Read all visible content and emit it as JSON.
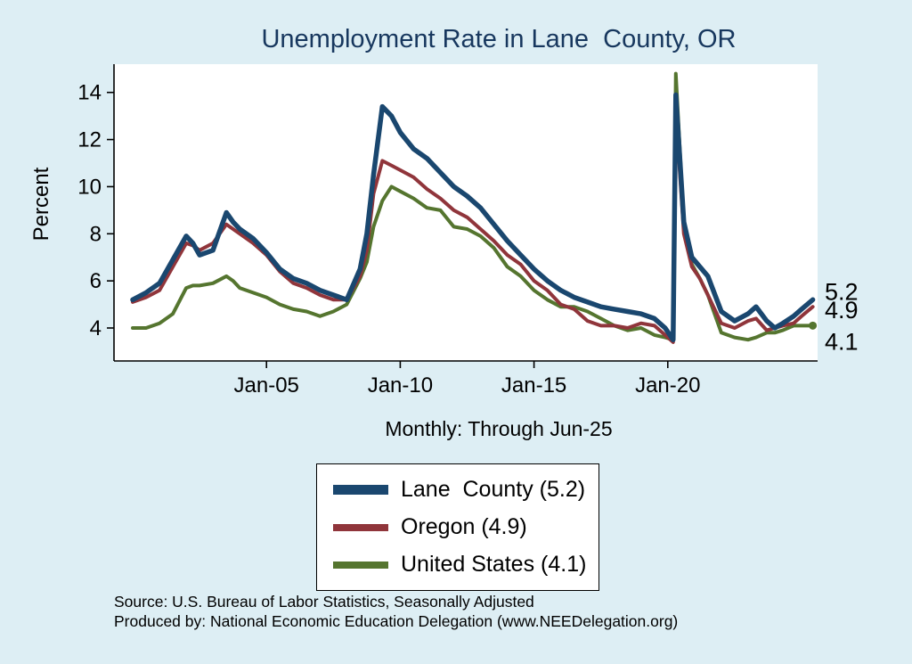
{
  "title": "Unemployment Rate in Lane  County, OR",
  "subtitle": "Monthly: Through Jun-25",
  "ylabel": "Percent",
  "source_line1": "Source: U.S. Bureau of Labor Statistics, Seasonally Adjusted",
  "source_line2": "Produced by: National Economic Education Delegation (www.NEEDelegation.org)",
  "colors": {
    "background": "#ddeef4",
    "title_text": "#17375e",
    "lane_county": "#1a476f",
    "oregon": "#90353b",
    "united_states": "#55752f"
  },
  "chart_data": {
    "type": "line",
    "title": "Unemployment Rate in Lane  County, OR",
    "subtitle": "Monthly: Through Jun-25",
    "xlabel": "",
    "ylabel": "Percent",
    "grid": false,
    "legend_position": "below",
    "x_unit": "decimal_year",
    "x_range": [
      1999.3,
      2025.6
    ],
    "y_range": [
      2.6,
      15.2
    ],
    "y_ticks": [
      4,
      6,
      8,
      10,
      12,
      14
    ],
    "x_ticks": [
      {
        "value": 2005,
        "label": "Jan-05"
      },
      {
        "value": 2010,
        "label": "Jan-10"
      },
      {
        "value": 2015,
        "label": "Jan-15"
      },
      {
        "value": 2020,
        "label": "Jan-20"
      }
    ],
    "x": [
      2000,
      2000.5,
      2001,
      2001.5,
      2002,
      2002.25,
      2002.5,
      2003,
      2003.5,
      2003.75,
      2004,
      2004.5,
      2005,
      2005.5,
      2006,
      2006.5,
      2007,
      2007.5,
      2008,
      2008.5,
      2008.75,
      2009,
      2009.33,
      2009.67,
      2010,
      2010.5,
      2011,
      2011.5,
      2012,
      2012.5,
      2013,
      2013.5,
      2014,
      2014.5,
      2015,
      2015.5,
      2016,
      2016.5,
      2017,
      2017.5,
      2018,
      2018.5,
      2019,
      2019.5,
      2019.9,
      2020.2,
      2020.3,
      2020.6,
      2020.9,
      2021.2,
      2021.5,
      2022,
      2022.5,
      2023,
      2023.3,
      2023.7,
      2024,
      2024.3,
      2024.7,
      2025,
      2025.42
    ],
    "series": [
      {
        "name": "Lane County",
        "legend_label": "Lane  County (5.2)",
        "end_label": "5.2",
        "latest_value": 5.2,
        "color": "#1a476f",
        "width": 5.5,
        "end_marker": false,
        "values": [
          5.2,
          5.5,
          5.9,
          6.9,
          7.9,
          7.6,
          7.1,
          7.3,
          8.9,
          8.5,
          8.2,
          7.8,
          7.2,
          6.5,
          6.1,
          5.9,
          5.6,
          5.4,
          5.2,
          6.5,
          8.0,
          10.5,
          13.4,
          13.0,
          12.3,
          11.6,
          11.2,
          10.6,
          10.0,
          9.6,
          9.1,
          8.4,
          7.7,
          7.1,
          6.5,
          6.0,
          5.6,
          5.3,
          5.1,
          4.9,
          4.8,
          4.7,
          4.6,
          4.4,
          4.0,
          3.5,
          13.9,
          8.5,
          7.0,
          6.6,
          6.2,
          4.7,
          4.3,
          4.6,
          4.9,
          4.3,
          4.0,
          4.2,
          4.5,
          4.8,
          5.2
        ]
      },
      {
        "name": "Oregon",
        "legend_label": "Oregon (4.9)",
        "end_label": "4.9",
        "latest_value": 4.9,
        "color": "#90353b",
        "width": 4,
        "end_marker": false,
        "values": [
          5.1,
          5.3,
          5.6,
          6.6,
          7.6,
          7.5,
          7.3,
          7.6,
          8.4,
          8.2,
          8.0,
          7.6,
          7.1,
          6.4,
          5.9,
          5.7,
          5.4,
          5.2,
          5.2,
          6.2,
          7.3,
          9.7,
          11.1,
          10.9,
          10.7,
          10.4,
          9.9,
          9.5,
          9.0,
          8.7,
          8.2,
          7.7,
          7.1,
          6.7,
          6.0,
          5.6,
          5.0,
          4.8,
          4.3,
          4.1,
          4.1,
          4.0,
          4.2,
          4.1,
          3.7,
          3.4,
          13.2,
          8.0,
          6.6,
          6.1,
          5.4,
          4.2,
          4.0,
          4.3,
          4.4,
          3.9,
          4.0,
          4.1,
          4.2,
          4.5,
          4.9
        ]
      },
      {
        "name": "United States",
        "legend_label": "United States (4.1)",
        "end_label": "4.1",
        "latest_value": 4.1,
        "color": "#55752f",
        "width": 4,
        "end_marker": true,
        "values": [
          4.0,
          4.0,
          4.2,
          4.6,
          5.7,
          5.8,
          5.8,
          5.9,
          6.2,
          6.0,
          5.7,
          5.5,
          5.3,
          5.0,
          4.8,
          4.7,
          4.5,
          4.7,
          5.0,
          6.1,
          6.8,
          8.3,
          9.4,
          10.0,
          9.8,
          9.5,
          9.1,
          9.0,
          8.3,
          8.2,
          7.9,
          7.4,
          6.6,
          6.2,
          5.6,
          5.2,
          4.9,
          4.9,
          4.7,
          4.4,
          4.1,
          3.9,
          4.0,
          3.7,
          3.6,
          3.5,
          14.8,
          8.4,
          6.7,
          6.1,
          5.4,
          3.8,
          3.6,
          3.5,
          3.6,
          3.8,
          3.8,
          3.9,
          4.1,
          4.1,
          4.1
        ]
      }
    ]
  }
}
